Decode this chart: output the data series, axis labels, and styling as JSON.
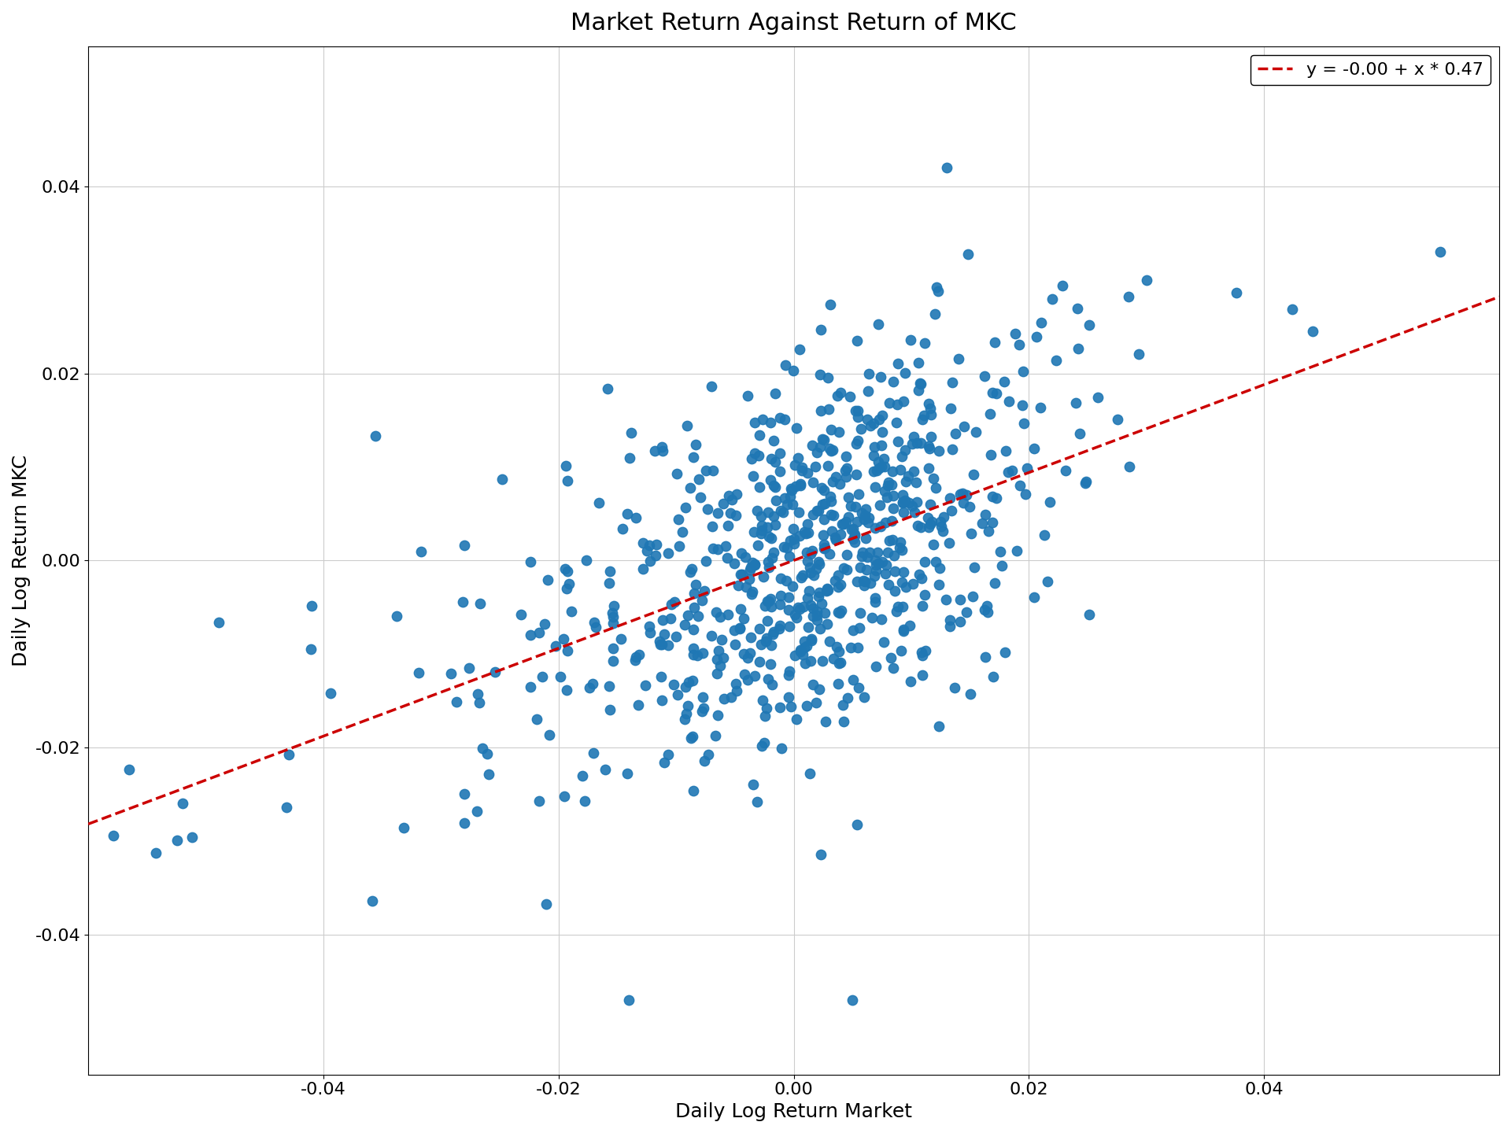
{
  "title": "Market Return Against Return of MKC",
  "xlabel": "Daily Log Return Market",
  "ylabel": "Daily Log Return MKC",
  "legend_label": "y = -0.00 + x * 0.47",
  "intercept": 0.0,
  "slope": 0.47,
  "xlim": [
    -0.06,
    0.06
  ],
  "ylim": [
    -0.055,
    0.055
  ],
  "xticks": [
    -0.04,
    -0.02,
    0.0,
    0.02,
    0.04
  ],
  "yticks": [
    -0.04,
    -0.02,
    0.0,
    0.02,
    0.04
  ],
  "scatter_color": "#1f77b4",
  "line_color": "#cc0000",
  "dot_size": 80,
  "dot_alpha": 0.9,
  "seed": 7,
  "n_points": 750,
  "title_fontsize": 22,
  "label_fontsize": 18,
  "tick_fontsize": 16,
  "legend_fontsize": 16,
  "figure_facecolor": "#ffffff",
  "axes_facecolor": "#ffffff",
  "grid_color": "#cccccc",
  "grid_linewidth": 0.8
}
